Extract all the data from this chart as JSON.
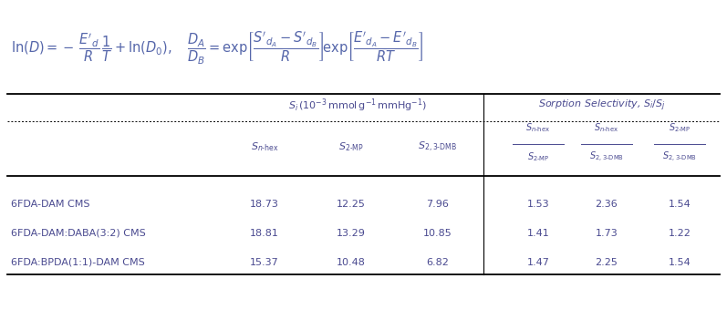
{
  "bg_color": "#ffffff",
  "text_color": "#4a4a90",
  "line_color": "#000000",
  "formula_color": "#5566aa",
  "col_header1": "$S_i\\,(10^{-3}\\,\\mathrm{mmol\\,g^{-1}\\,mmHg^{-1}})$",
  "col_header2": "Sorption Selectivity, $S_i/S_j$",
  "sub_left": [
    "$S_{n\\text{-hex}}$",
    "$S_{2\\text{-MP}}$",
    "$S_{2,3\\text{-DMB}}$"
  ],
  "sub_right_num": [
    "$S_{n\\text{-hex}}$",
    "$S_{n\\text{-hex}}$",
    "$S_{2\\text{-MP}}$"
  ],
  "sub_right_den": [
    "$S_{2\\text{-MP}}$",
    "$S_{2,3\\text{-DMB}}$",
    "$S_{2,3\\text{-DMB}}$"
  ],
  "row_labels": [
    "6FDA-DAM CMS",
    "6FDA-DAM:DABA(3:2) CMS",
    "6FDA:BPDA(1:1)-DAM CMS"
  ],
  "data": [
    [
      "18.73",
      "12.25",
      "7.96",
      "1.53",
      "2.36",
      "1.54"
    ],
    [
      "18.81",
      "13.29",
      "10.85",
      "1.41",
      "1.73",
      "1.22"
    ],
    [
      "15.37",
      "10.48",
      "6.82",
      "1.47",
      "2.25",
      "1.54"
    ]
  ]
}
